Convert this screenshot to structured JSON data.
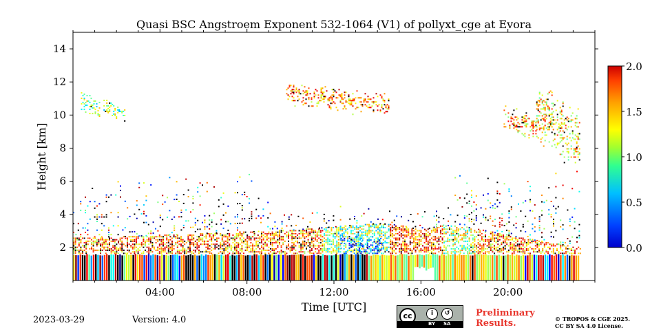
{
  "chart_data": {
    "type": "heatmap",
    "title": "Quasi BSC Angstroem Exponent 532-1064 (V1) of pollyxt_cge at Evora",
    "xlabel": "Time [UTC]",
    "ylabel": "Height [km]",
    "x_range_hours": [
      0,
      24
    ],
    "ylim": [
      0,
      15
    ],
    "x_ticks": [
      {
        "value": 4,
        "label": "04:00"
      },
      {
        "value": 8,
        "label": "08:00"
      },
      {
        "value": 12,
        "label": "12:00"
      },
      {
        "value": 16,
        "label": "16:00"
      },
      {
        "value": 20,
        "label": "20:00"
      }
    ],
    "y_ticks": [
      {
        "value": 2,
        "label": "2"
      },
      {
        "value": 4,
        "label": "4"
      },
      {
        "value": 6,
        "label": "6"
      },
      {
        "value": 8,
        "label": "8"
      },
      {
        "value": 10,
        "label": "10"
      },
      {
        "value": 12,
        "label": "12"
      },
      {
        "value": 14,
        "label": "14"
      }
    ],
    "colorbar": {
      "min": 0.0,
      "max": 2.0,
      "ticks": [
        "0.0",
        "0.5",
        "1.0",
        "1.5",
        "2.0"
      ],
      "colormap": "jet"
    },
    "features": {
      "boundary_layer_top_km": [
        [
          0,
          2.6
        ],
        [
          2,
          2.6
        ],
        [
          4,
          2.7
        ],
        [
          6,
          2.8
        ],
        [
          8,
          2.9
        ],
        [
          10,
          3.0
        ],
        [
          12,
          3.2
        ],
        [
          14,
          3.4
        ],
        [
          15,
          3.3
        ],
        [
          16,
          3.0
        ],
        [
          17,
          3.3
        ],
        [
          18,
          3.2
        ],
        [
          20,
          2.7
        ],
        [
          22,
          2.2
        ],
        [
          23.3,
          2.0
        ]
      ],
      "noisy_near_range_top_km": 1.6,
      "cirrus_layers": [
        {
          "start_h": 0.3,
          "end_h": 1.2,
          "bottom_km": 9.8,
          "top_km": 11.4,
          "value": 1.0
        },
        {
          "start_h": 1.4,
          "end_h": 2.4,
          "bottom_km": 9.6,
          "top_km": 10.9,
          "value": 1.0
        },
        {
          "start_h": 9.8,
          "end_h": 14.5,
          "bottom_km": 10.0,
          "top_km": 11.8,
          "value": 1.5
        },
        {
          "start_h": 19.8,
          "end_h": 21.3,
          "bottom_km": 8.5,
          "top_km": 10.5,
          "value": 1.4
        },
        {
          "start_h": 21.3,
          "end_h": 23.3,
          "bottom_km": 7.0,
          "top_km": 11.5,
          "value": 1.3
        }
      ]
    }
  },
  "footer": {
    "date": "2023-03-29",
    "version": "Version: 4.0",
    "preliminary_line1": "Preliminary",
    "preliminary_line2": "Results.",
    "copyright_line1": "© TROPOS & CGE 2025.",
    "copyright_line2": "CC BY SA 4.0 License.",
    "license_badge": {
      "by": "BY",
      "sa": "SA",
      "cc": "cc"
    }
  },
  "colors": {
    "background": "#ffffff",
    "preliminary_text": "#e8352c"
  }
}
